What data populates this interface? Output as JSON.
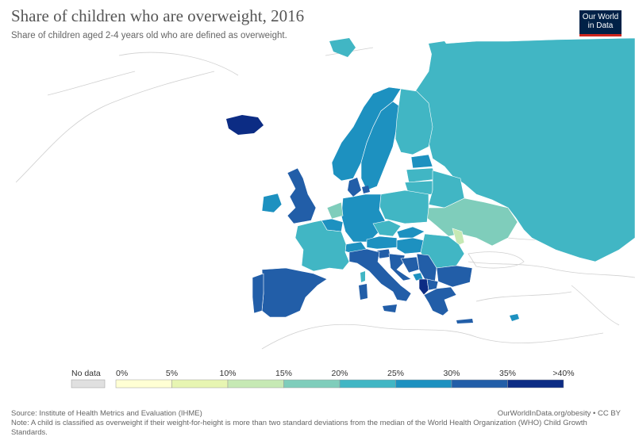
{
  "header": {
    "title": "Share of children who are overweight, 2016",
    "subtitle": "Share of children aged 2-4 years old who are defined as overweight."
  },
  "logo": {
    "line1": "Our World",
    "line2": "in Data"
  },
  "legend": {
    "no_data_label": "No data",
    "no_data_color": "#e0e0e0",
    "ticks": [
      "0%",
      "5%",
      "10%",
      "15%",
      "20%",
      "25%",
      "30%",
      "35%",
      ">40%"
    ],
    "bins": [
      {
        "range": "0-5%",
        "color": "#ffffd4"
      },
      {
        "range": "5-10%",
        "color": "#e7f5b2"
      },
      {
        "range": "10-15%",
        "color": "#c6e9b4"
      },
      {
        "range": "15-20%",
        "color": "#7fcdbb"
      },
      {
        "range": "20-25%",
        "color": "#41b6c4"
      },
      {
        "range": "25-30%",
        "color": "#1d91c0"
      },
      {
        "range": "30-35%",
        "color": "#225ea8"
      },
      {
        "range": ">35%",
        "color": "#0c2c84"
      }
    ]
  },
  "regions": [
    {
      "name": "Russia",
      "bin": "20-25%"
    },
    {
      "name": "Iceland",
      "bin": ">35%"
    },
    {
      "name": "Norway",
      "bin": "25-30%"
    },
    {
      "name": "Sweden",
      "bin": "25-30%"
    },
    {
      "name": "Finland",
      "bin": "20-25%"
    },
    {
      "name": "Estonia",
      "bin": "25-30%"
    },
    {
      "name": "Latvia",
      "bin": "20-25%"
    },
    {
      "name": "Lithuania",
      "bin": "20-25%"
    },
    {
      "name": "Belarus",
      "bin": "20-25%"
    },
    {
      "name": "Ukraine",
      "bin": "15-20%"
    },
    {
      "name": "Moldova",
      "bin": "10-15%"
    },
    {
      "name": "Poland",
      "bin": "20-25%"
    },
    {
      "name": "Germany",
      "bin": "25-30%"
    },
    {
      "name": "Denmark",
      "bin": "30-35%"
    },
    {
      "name": "Netherlands",
      "bin": "15-20%"
    },
    {
      "name": "Belgium",
      "bin": "25-30%"
    },
    {
      "name": "United Kingdom",
      "bin": "30-35%"
    },
    {
      "name": "Ireland",
      "bin": "25-30%"
    },
    {
      "name": "France",
      "bin": "20-25%"
    },
    {
      "name": "Spain",
      "bin": "30-35%"
    },
    {
      "name": "Portugal",
      "bin": "30-35%"
    },
    {
      "name": "Switzerland",
      "bin": "25-30%"
    },
    {
      "name": "Austria",
      "bin": "25-30%"
    },
    {
      "name": "Czechia",
      "bin": "20-25%"
    },
    {
      "name": "Slovakia",
      "bin": "25-30%"
    },
    {
      "name": "Hungary",
      "bin": "25-30%"
    },
    {
      "name": "Romania",
      "bin": "20-25%"
    },
    {
      "name": "Bulgaria",
      "bin": "30-35%"
    },
    {
      "name": "Italy",
      "bin": "30-35%"
    },
    {
      "name": "Slovenia",
      "bin": "30-35%"
    },
    {
      "name": "Croatia",
      "bin": "30-35%"
    },
    {
      "name": "Bosnia and Herzegovina",
      "bin": "30-35%"
    },
    {
      "name": "Serbia",
      "bin": "30-35%"
    },
    {
      "name": "Montenegro",
      "bin": "25-30%"
    },
    {
      "name": "Albania",
      "bin": ">35%"
    },
    {
      "name": "Macedonia",
      "bin": "30-35%"
    },
    {
      "name": "Greece",
      "bin": "30-35%"
    },
    {
      "name": "Sardinia",
      "bin": "30-35%"
    },
    {
      "name": "Corsica",
      "bin": "20-25%"
    },
    {
      "name": "Cyprus",
      "bin": "25-30%"
    },
    {
      "name": "Crete",
      "bin": "30-35%"
    },
    {
      "name": "Svalbard",
      "bin": "20-25%"
    }
  ],
  "footer": {
    "source": "Source: Institute of Health Metrics and Evaluation (IHME)",
    "url": "OurWorldInData.org/obesity • CC BY",
    "note": "Note: A child is classified as overweight if their weight-for-height is more than two standard deviations from the median of the World Health Organization (WHO) Child Growth Standards."
  }
}
